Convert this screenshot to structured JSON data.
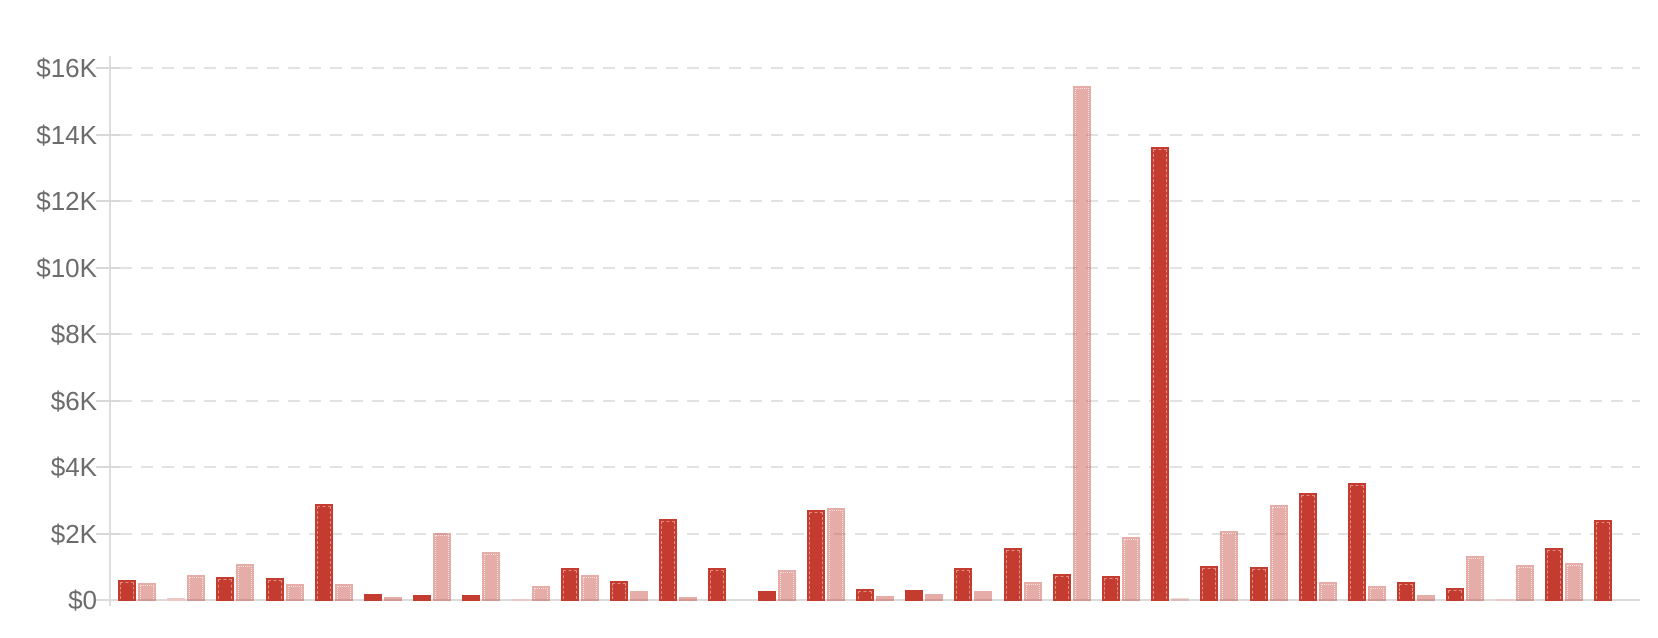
{
  "colors": {
    "bar_dark": "#c43b2f",
    "bar_light_base": "#c43b2f",
    "bar_light_opacity": 0.42,
    "gridline": "#e2e2e2",
    "axis_line": "#dedede",
    "tick_label": "#6c6c6c",
    "background": "#ffffff"
  },
  "chart_data": {
    "type": "bar",
    "title": "",
    "xlabel": "",
    "ylabel": "",
    "group_count": 31,
    "x_axis": {
      "labels_visible": false,
      "categories": null
    },
    "y_axis": {
      "unit": "USD",
      "min": 0,
      "max": 16000,
      "tick_step": 2000,
      "tick_labels": [
        "$16K",
        "$14K",
        "$12K",
        "$10K",
        "$8K",
        "$6K",
        "$4K",
        "$2K",
        "$0"
      ],
      "tick_values": [
        16000,
        14000,
        12000,
        10000,
        8000,
        6000,
        4000,
        2000,
        0
      ]
    },
    "grid": {
      "horizontal": true,
      "style": "dashed",
      "zero_line": "solid"
    },
    "legend": {
      "visible": false
    },
    "series": [
      {
        "name": "series-dark-red",
        "color": "#c43b2f",
        "opacity": 1,
        "values": [
          630,
          80,
          720,
          690,
          2930,
          220,
          170,
          190,
          50,
          1000,
          590,
          2460,
          1000,
          290,
          2730,
          370,
          340,
          990,
          1590,
          820,
          750,
          13650,
          1050,
          1020,
          3250,
          3560,
          570,
          390,
          50,
          1590,
          2430
        ]
      },
      {
        "name": "series-light-pink",
        "color": "#c43b2f",
        "opacity": 0.42,
        "values": [
          540,
          770,
          1100,
          520,
          500,
          130,
          2050,
          1470,
          450,
          770,
          300,
          110,
          0,
          940,
          2800,
          140,
          220,
          300,
          570,
          15500,
          1930,
          90,
          2100,
          2900,
          560,
          460,
          190,
          1340,
          1090,
          1140,
          0
        ]
      }
    ]
  }
}
